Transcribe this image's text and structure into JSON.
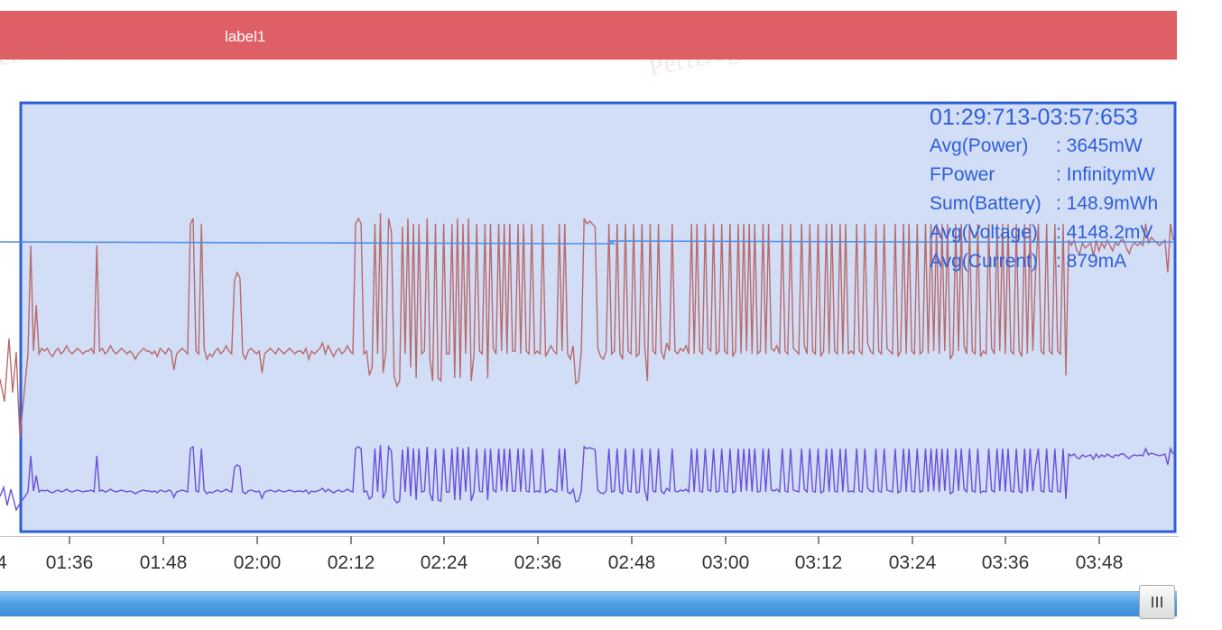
{
  "header": {
    "label": "label1",
    "watermark": "PerfDog",
    "color": "#df5f66"
  },
  "selection": {
    "range": "01:29:713-03:57:653",
    "stats": [
      {
        "key": "Avg(Power)",
        "value": ": 3645mW"
      },
      {
        "key": "FPower",
        "value": ": InfinitymW"
      },
      {
        "key": "Sum(Battery)",
        "value": ": 148.9mWh"
      },
      {
        "key": "Avg(Voltage)",
        "value": ": 4148.2mV"
      },
      {
        "key": "Avg(Current)",
        "value": ": 879mA"
      }
    ],
    "text_color": "#2f5fd8",
    "fill_color": "#d2ddf6",
    "border_color": "#2f5fd8"
  },
  "x_axis": {
    "ticks": [
      "4",
      "01:36",
      "01:48",
      "02:00",
      "02:12",
      "02:24",
      "02:36",
      "02:48",
      "03:00",
      "03:12",
      "03:24",
      "03:36",
      "03:48"
    ]
  },
  "scrollbar": {
    "handle_icon": "grip-icon",
    "color": "#4e9ee4"
  },
  "chart_data": {
    "type": "line",
    "x_start": "01:25:20",
    "x_end": "03:53:10",
    "selection_range": [
      "01:29:713",
      "03:57:653"
    ],
    "series": [
      {
        "color": "#b86b6b",
        "values": [
          30,
          70,
          31,
          48,
          30,
          32,
          31,
          32,
          30,
          29,
          31,
          32,
          30,
          31,
          33,
          31,
          30,
          31,
          32,
          31,
          30,
          31,
          31,
          32,
          30,
          70,
          31,
          32,
          30,
          31,
          33,
          31,
          30,
          31,
          32,
          31,
          30,
          31,
          30,
          28,
          30,
          31,
          32,
          31,
          31,
          30,
          31,
          29,
          32,
          31,
          30,
          32,
          31,
          24,
          30,
          31,
          32,
          31,
          30,
          78,
          80,
          31,
          30,
          78,
          32,
          28,
          30,
          29,
          31,
          32,
          30,
          31,
          33,
          31,
          30,
          57,
          60,
          58,
          30,
          28,
          31,
          32,
          31,
          30,
          31,
          23,
          30,
          31,
          32,
          31,
          30,
          32,
          31,
          30,
          31,
          32,
          31,
          30,
          31,
          31,
          30,
          32,
          28,
          31,
          30,
          31,
          32,
          34,
          30,
          33,
          31,
          29,
          31,
          32,
          30,
          31,
          33,
          31,
          30,
          78,
          80,
          78,
          30,
          31,
          22,
          25,
          78,
          30,
          82,
          23,
          31,
          80,
          75,
          22,
          18,
          20,
          77,
          30,
          80,
          25,
          78,
          21,
          78,
          30,
          31,
          80,
          28,
          20,
          78,
          21,
          20,
          78,
          30,
          30,
          78,
          21,
          80,
          21,
          78,
          30,
          80,
          20,
          30,
          78,
          31,
          30,
          78,
          21,
          78,
          32,
          30,
          78,
          31,
          78,
          30,
          78,
          31,
          31,
          78,
          30,
          78,
          31,
          30,
          78,
          30,
          31,
          30,
          78,
          29,
          31,
          33,
          31,
          30,
          78,
          31,
          78,
          30,
          28,
          33,
          19,
          20,
          31,
          80,
          78,
          79,
          78,
          77,
          32,
          29,
          28,
          31,
          78,
          30,
          31,
          78,
          30,
          28,
          78,
          31,
          30,
          78,
          29,
          30,
          78,
          33,
          20,
          78,
          31,
          30,
          78,
          31,
          28,
          34,
          31,
          78,
          31,
          30,
          32,
          31,
          33,
          30,
          78,
          30,
          78,
          31,
          30,
          78,
          32,
          31,
          78,
          30,
          31,
          78,
          31,
          30,
          78,
          29,
          31,
          78,
          30,
          78,
          31,
          78,
          30,
          78,
          30,
          31,
          78,
          30,
          78,
          32,
          31,
          33,
          30,
          78,
          31,
          30,
          78,
          32,
          31,
          30,
          78,
          33,
          30,
          78,
          31,
          30,
          78,
          29,
          31,
          78,
          30,
          78,
          31,
          30,
          78,
          30,
          78,
          30,
          31,
          30,
          78,
          31,
          30,
          78,
          34,
          31,
          30,
          78,
          31,
          30,
          78,
          32,
          31,
          30,
          78,
          29,
          31,
          78,
          30,
          78,
          31,
          30,
          78,
          30,
          31,
          78,
          30,
          78,
          31,
          78,
          30,
          78,
          31,
          78,
          28,
          30,
          78,
          31,
          78,
          33,
          30,
          78,
          31,
          30,
          78,
          29,
          31,
          30,
          78,
          32,
          30,
          78,
          31,
          78,
          30,
          78,
          31,
          30,
          78,
          31,
          29,
          78,
          30,
          78,
          31,
          60,
          78,
          31,
          30,
          78,
          31,
          30,
          78,
          31,
          30,
          78,
          22,
          72,
          70,
          72,
          68,
          67,
          71,
          69,
          70,
          71,
          66,
          72,
          68,
          71,
          69,
          72,
          70,
          68,
          71,
          70,
          72,
          72,
          69,
          67,
          70,
          71,
          70,
          71,
          70,
          78,
          71,
          73,
          72,
          71,
          70,
          71,
          72,
          60,
          78,
          72
        ]
      },
      {
        "color": "#6a4fd8",
        "values": [
          97,
          98,
          98,
          98,
          97,
          98,
          98,
          98,
          97,
          98,
          98,
          97,
          97,
          98,
          98,
          98,
          97,
          98,
          98,
          98,
          97,
          99,
          98,
          98,
          97,
          98,
          98,
          98,
          97,
          98,
          98,
          98,
          97,
          98,
          98,
          98,
          97,
          98,
          98,
          97,
          97,
          98,
          98,
          98,
          97,
          98,
          98,
          98,
          97,
          98,
          98,
          98
        ]
      },
      {
        "color": "#4c8ee8",
        "values": [
          4148,
          4148,
          4148,
          4148,
          4148
        ]
      }
    ]
  }
}
